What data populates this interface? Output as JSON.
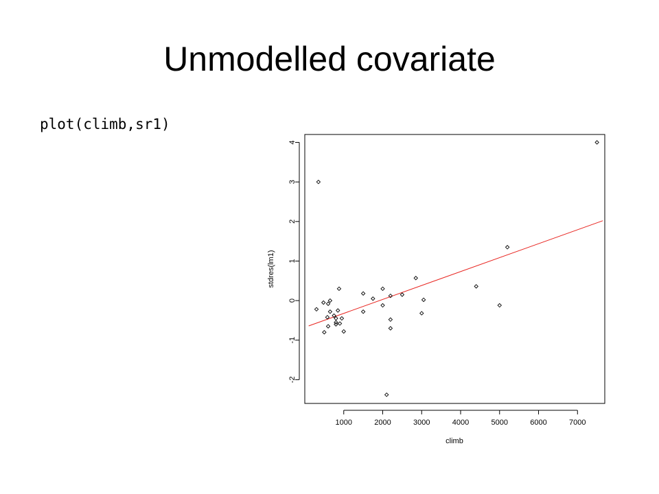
{
  "slide": {
    "title": "Unmodelled covariate",
    "code": "plot(climb,sr1)"
  },
  "chart_data": {
    "type": "scatter",
    "xlabel": "climb",
    "ylabel": "stdres(lm1)",
    "xlim": [
      0,
      7700
    ],
    "ylim": [
      -2.6,
      4.2
    ],
    "x_ticks": [
      1000,
      2000,
      3000,
      4000,
      5000,
      6000,
      7000
    ],
    "y_ticks": [
      -2,
      -1,
      0,
      1,
      2,
      3,
      4
    ],
    "grid": false,
    "legend": "none",
    "point_color": "#000000",
    "fit_color": "#e8231e",
    "points": [
      {
        "x": 300,
        "y": -0.22
      },
      {
        "x": 350,
        "y": 3.0
      },
      {
        "x": 480,
        "y": -0.05
      },
      {
        "x": 500,
        "y": -0.8
      },
      {
        "x": 580,
        "y": -0.42
      },
      {
        "x": 600,
        "y": -0.65
      },
      {
        "x": 650,
        "y": -0.28
      },
      {
        "x": 650,
        "y": 0.0
      },
      {
        "x": 600,
        "y": -0.08
      },
      {
        "x": 750,
        "y": -0.38
      },
      {
        "x": 800,
        "y": -0.55
      },
      {
        "x": 800,
        "y": -0.45
      },
      {
        "x": 800,
        "y": -0.6
      },
      {
        "x": 850,
        "y": -0.25
      },
      {
        "x": 880,
        "y": 0.3
      },
      {
        "x": 900,
        "y": -0.58
      },
      {
        "x": 950,
        "y": -0.45
      },
      {
        "x": 1000,
        "y": -0.78
      },
      {
        "x": 1500,
        "y": -0.28
      },
      {
        "x": 1500,
        "y": 0.18
      },
      {
        "x": 1750,
        "y": 0.05
      },
      {
        "x": 2000,
        "y": 0.3
      },
      {
        "x": 2000,
        "y": -0.12
      },
      {
        "x": 2100,
        "y": -2.38
      },
      {
        "x": 2200,
        "y": 0.12
      },
      {
        "x": 2200,
        "y": -0.48
      },
      {
        "x": 2200,
        "y": -0.7
      },
      {
        "x": 2500,
        "y": 0.15
      },
      {
        "x": 2850,
        "y": 0.57
      },
      {
        "x": 3000,
        "y": -0.32
      },
      {
        "x": 3050,
        "y": 0.02
      },
      {
        "x": 4400,
        "y": 0.36
      },
      {
        "x": 5000,
        "y": -0.12
      },
      {
        "x": 5200,
        "y": 1.35
      },
      {
        "x": 7500,
        "y": 4.0
      }
    ],
    "fit_line": {
      "x": [
        100,
        7650
      ],
      "y": [
        -0.64,
        2.02
      ]
    }
  }
}
